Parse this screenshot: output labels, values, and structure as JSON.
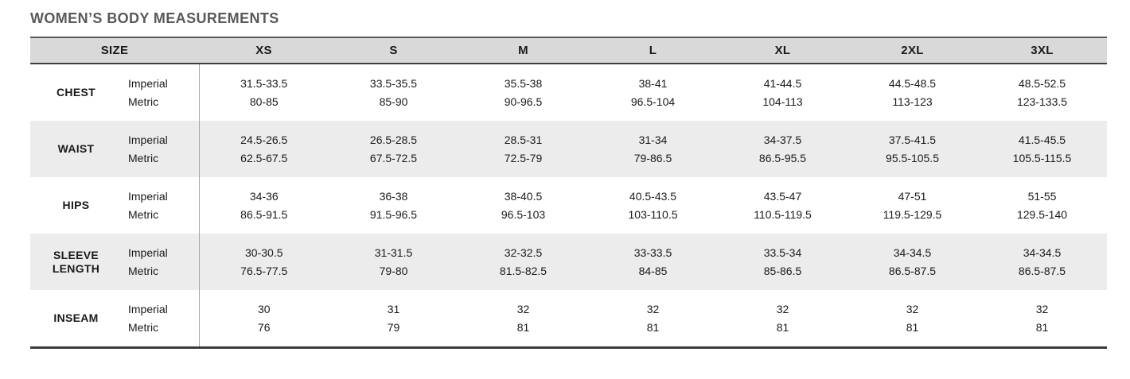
{
  "title": "WOMEN’S BODY MEASUREMENTS",
  "labels": {
    "imperial": "Imperial",
    "metric": "Metric"
  },
  "table": {
    "size_header": "SIZE",
    "sizes": [
      "XS",
      "S",
      "M",
      "L",
      "XL",
      "2XL",
      "3XL"
    ],
    "rows": [
      {
        "label": "CHEST",
        "imperial": [
          "31.5-33.5",
          "33.5-35.5",
          "35.5-38",
          "38-41",
          "41-44.5",
          "44.5-48.5",
          "48.5-52.5"
        ],
        "metric": [
          "80-85",
          "85-90",
          "90-96.5",
          "96.5-104",
          "104-113",
          "113-123",
          "123-133.5"
        ]
      },
      {
        "label": "WAIST",
        "imperial": [
          "24.5-26.5",
          "26.5-28.5",
          "28.5-31",
          "31-34",
          "34-37.5",
          "37.5-41.5",
          "41.5-45.5"
        ],
        "metric": [
          "62.5-67.5",
          "67.5-72.5",
          "72.5-79",
          "79-86.5",
          "86.5-95.5",
          "95.5-105.5",
          "105.5-115.5"
        ]
      },
      {
        "label": "HIPS",
        "imperial": [
          "34-36",
          "36-38",
          "38-40.5",
          "40.5-43.5",
          "43.5-47",
          "47-51",
          "51-55"
        ],
        "metric": [
          "86.5-91.5",
          "91.5-96.5",
          "96.5-103",
          "103-110.5",
          "110.5-119.5",
          "119.5-129.5",
          "129.5-140"
        ]
      },
      {
        "label": "SLEEVE LENGTH",
        "imperial": [
          "30-30.5",
          "31-31.5",
          "32-32.5",
          "33-33.5",
          "33.5-34",
          "34-34.5",
          "34-34.5"
        ],
        "metric": [
          "76.5-77.5",
          "79-80",
          "81.5-82.5",
          "84-85",
          "85-86.5",
          "86.5-87.5",
          "86.5-87.5"
        ]
      },
      {
        "label": "INSEAM",
        "imperial": [
          "30",
          "31",
          "32",
          "32",
          "32",
          "32",
          "32"
        ],
        "metric": [
          "76",
          "79",
          "81",
          "81",
          "81",
          "81",
          "81"
        ]
      }
    ]
  },
  "colors": {
    "title_text": "#595959",
    "header_bg": "#d9d9d9",
    "zebra_bg": "#ececec",
    "border_dark": "#3a3a3a",
    "divider": "#a6a6a6",
    "body_text": "#1a1a1a"
  }
}
